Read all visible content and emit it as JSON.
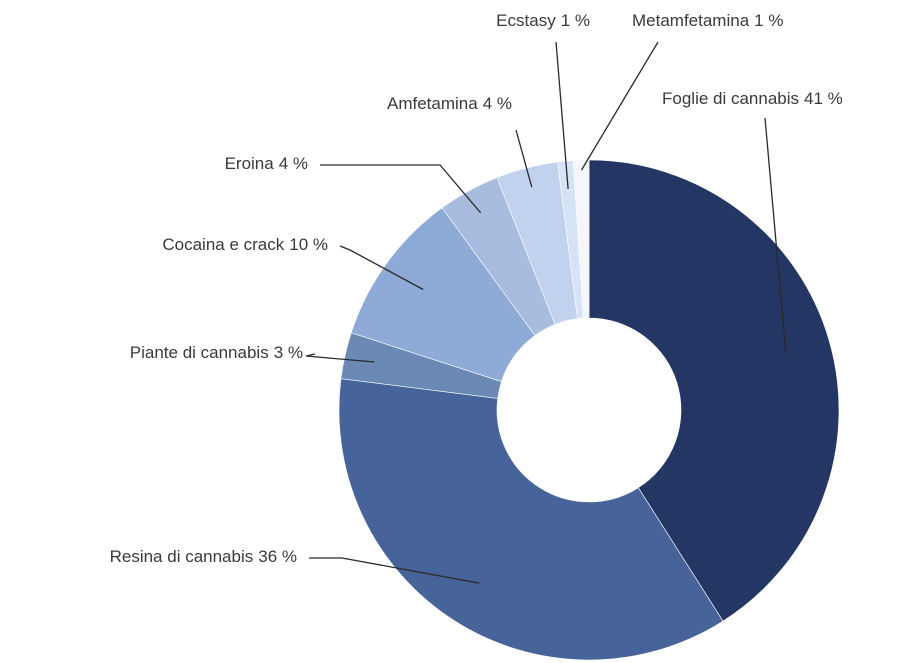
{
  "chart_data": {
    "type": "donut",
    "categories": [
      "Foglie di cannabis",
      "Resina di cannabis",
      "Piante di cannabis",
      "Cocaina e crack",
      "Eroina",
      "Amfetamina",
      "Ecstasy",
      "Metamfetamina"
    ],
    "values": [
      41,
      36,
      3,
      10,
      4,
      4,
      1,
      1
    ],
    "value_labels": [
      "41 %",
      "36 %",
      "3 %",
      "10 %",
      "4 %",
      "4 %",
      "1 %",
      "1 %"
    ],
    "colors": [
      "#243664",
      "#46639a",
      "#6a8ab5",
      "#8eaad6",
      "#a8bcdf",
      "#c0d2ee",
      "#d6e2f5",
      "#f4f6fb"
    ]
  }
}
